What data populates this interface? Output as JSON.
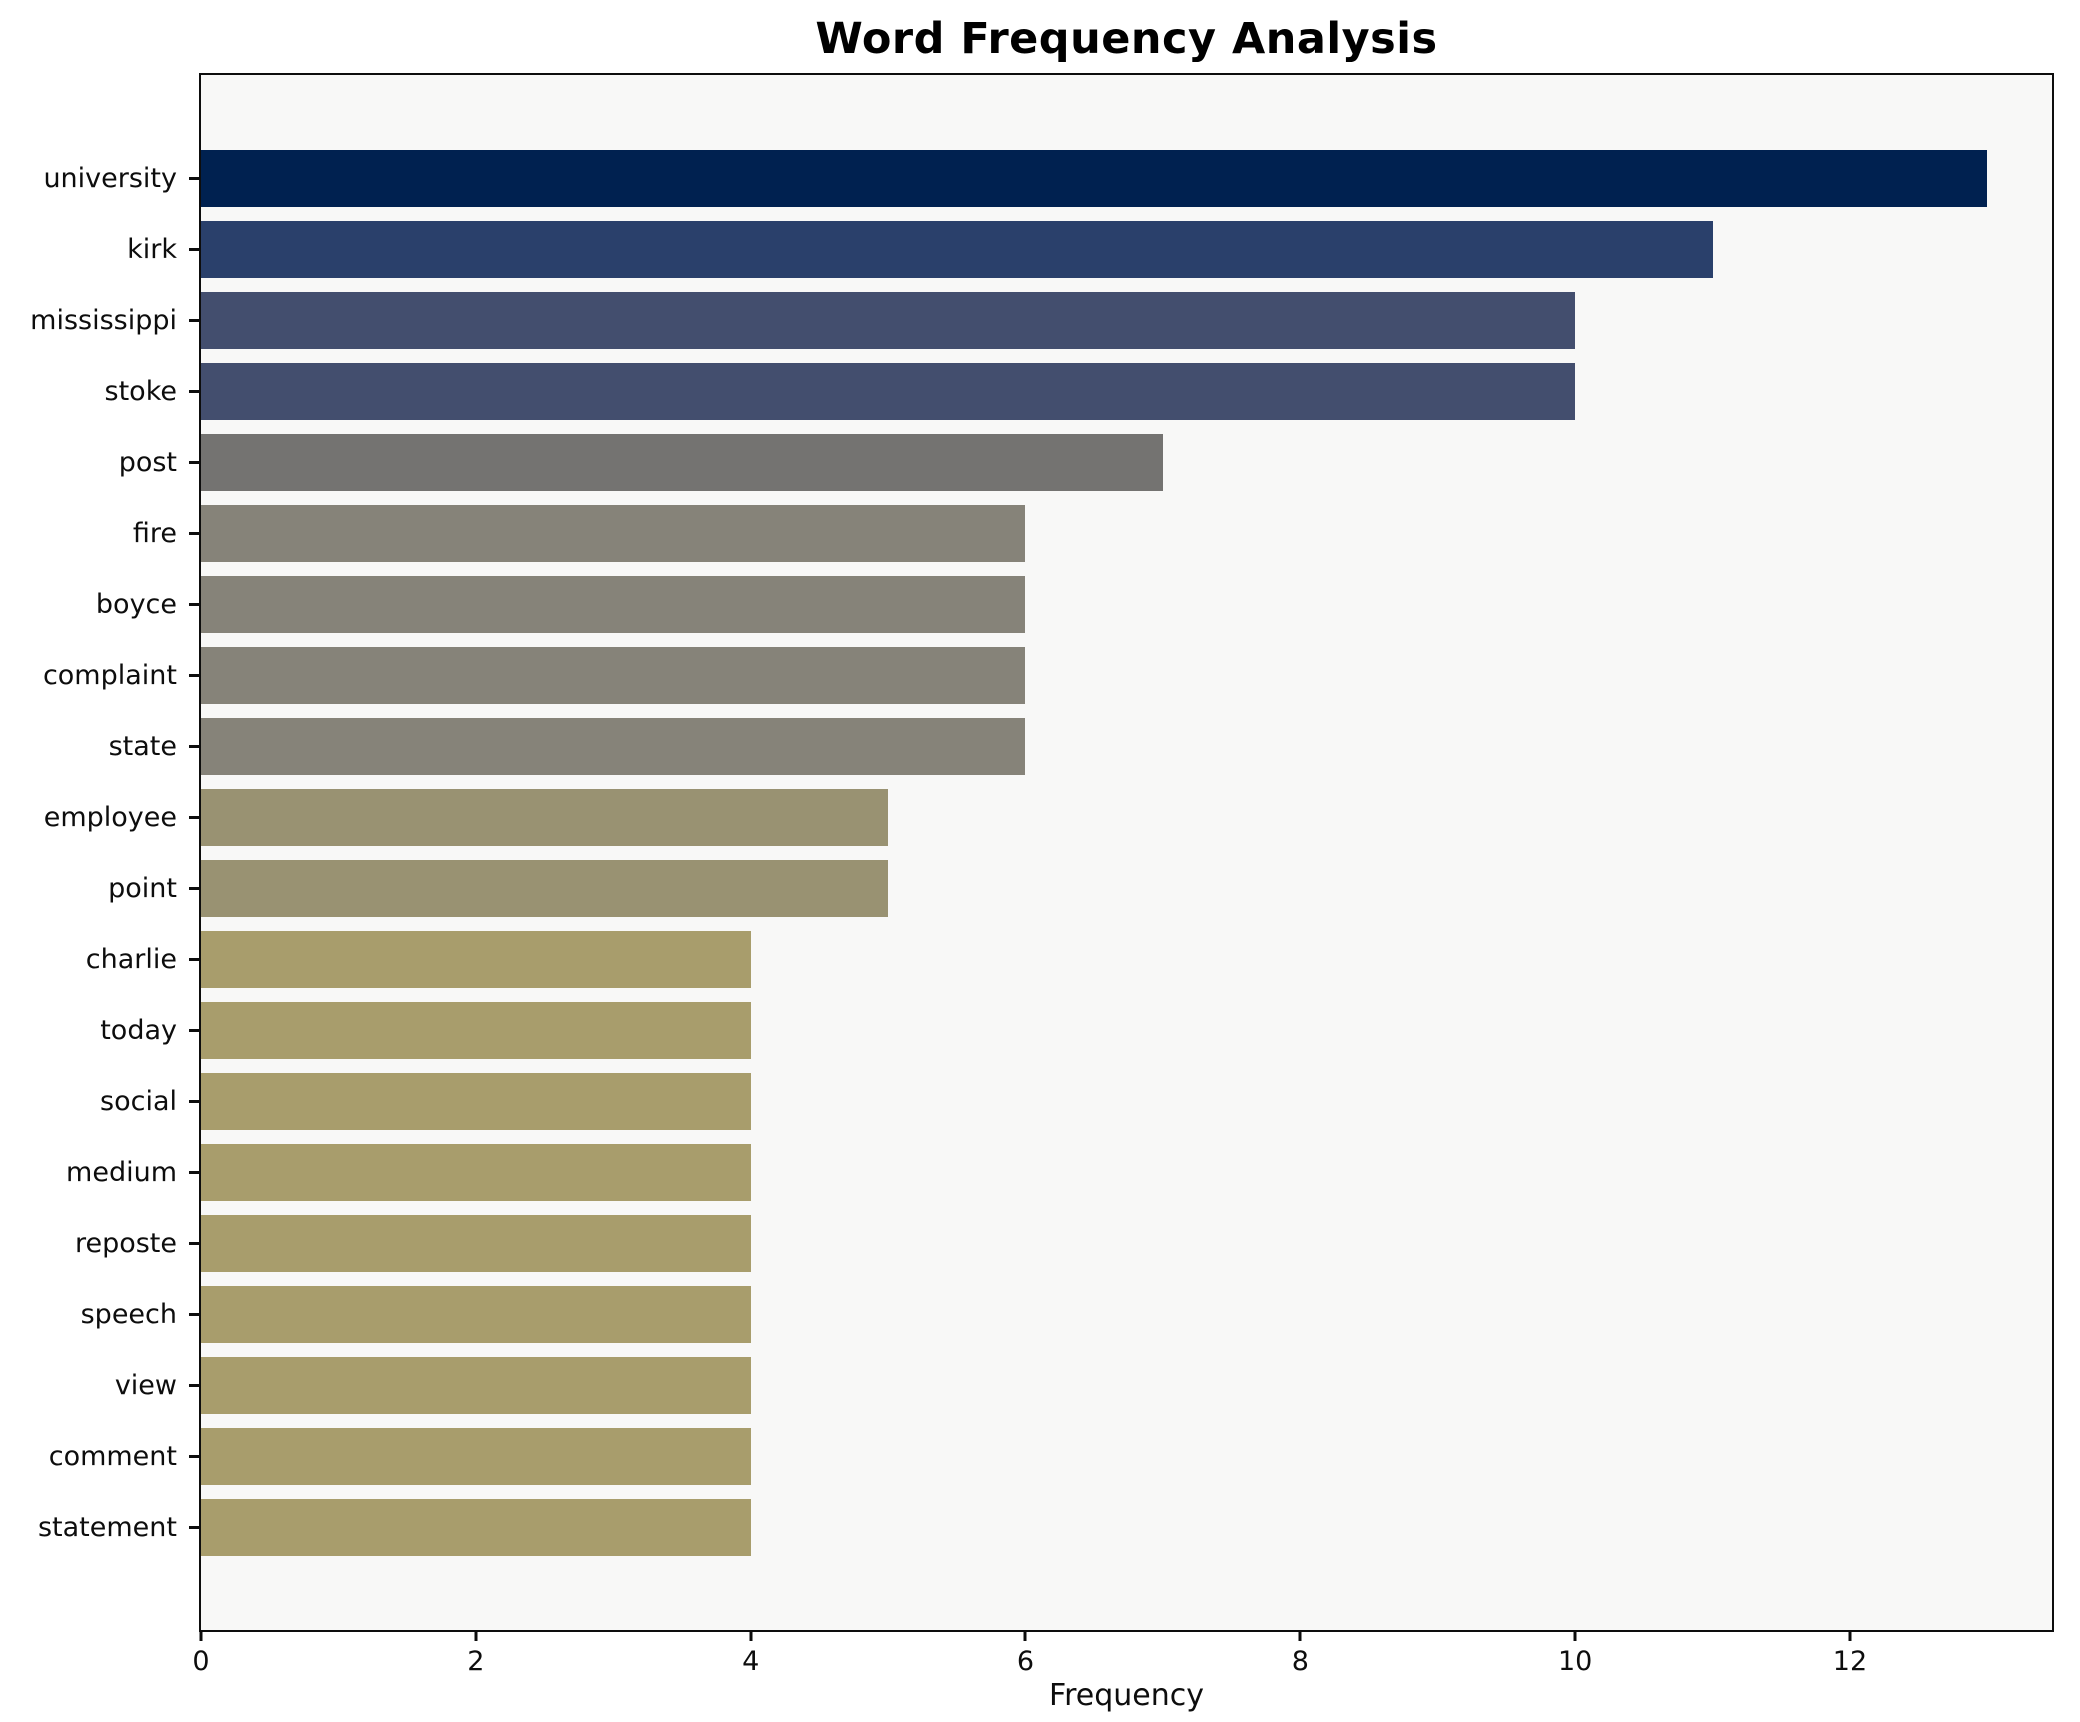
{
  "chart_data": {
    "type": "bar",
    "orientation": "horizontal",
    "title": "Word Frequency Analysis",
    "xlabel": "Frequency",
    "ylabel": "",
    "xlim": [
      0,
      13.47
    ],
    "xticks": [
      0,
      2,
      4,
      6,
      8,
      10,
      12
    ],
    "grid": false,
    "legend_position": "none",
    "colormap": "cividis",
    "plot_background": "#f8f8f7",
    "figure_background": "#ffffff",
    "spine_color": "#0d0d0d",
    "categories": [
      "university",
      "kirk",
      "mississippi",
      "stoke",
      "post",
      "fire",
      "boyce",
      "complaint",
      "state",
      "employee",
      "point",
      "charlie",
      "today",
      "social",
      "medium",
      "reposte",
      "speech",
      "view",
      "comment",
      "statement"
    ],
    "values": [
      13,
      11,
      10,
      10,
      7,
      6,
      6,
      6,
      6,
      5,
      5,
      4,
      4,
      4,
      4,
      4,
      4,
      4,
      4,
      4
    ],
    "bar_colors": [
      "#002150",
      "#2a406b",
      "#434e6e",
      "#434e6e",
      "#747371",
      "#868379",
      "#868379",
      "#868379",
      "#868379",
      "#999272",
      "#999272",
      "#a89d6c",
      "#a89d6c",
      "#a89d6c",
      "#a89d6c",
      "#a89d6c",
      "#a89d6c",
      "#a89d6c",
      "#a89d6c",
      "#a89d6c"
    ]
  }
}
